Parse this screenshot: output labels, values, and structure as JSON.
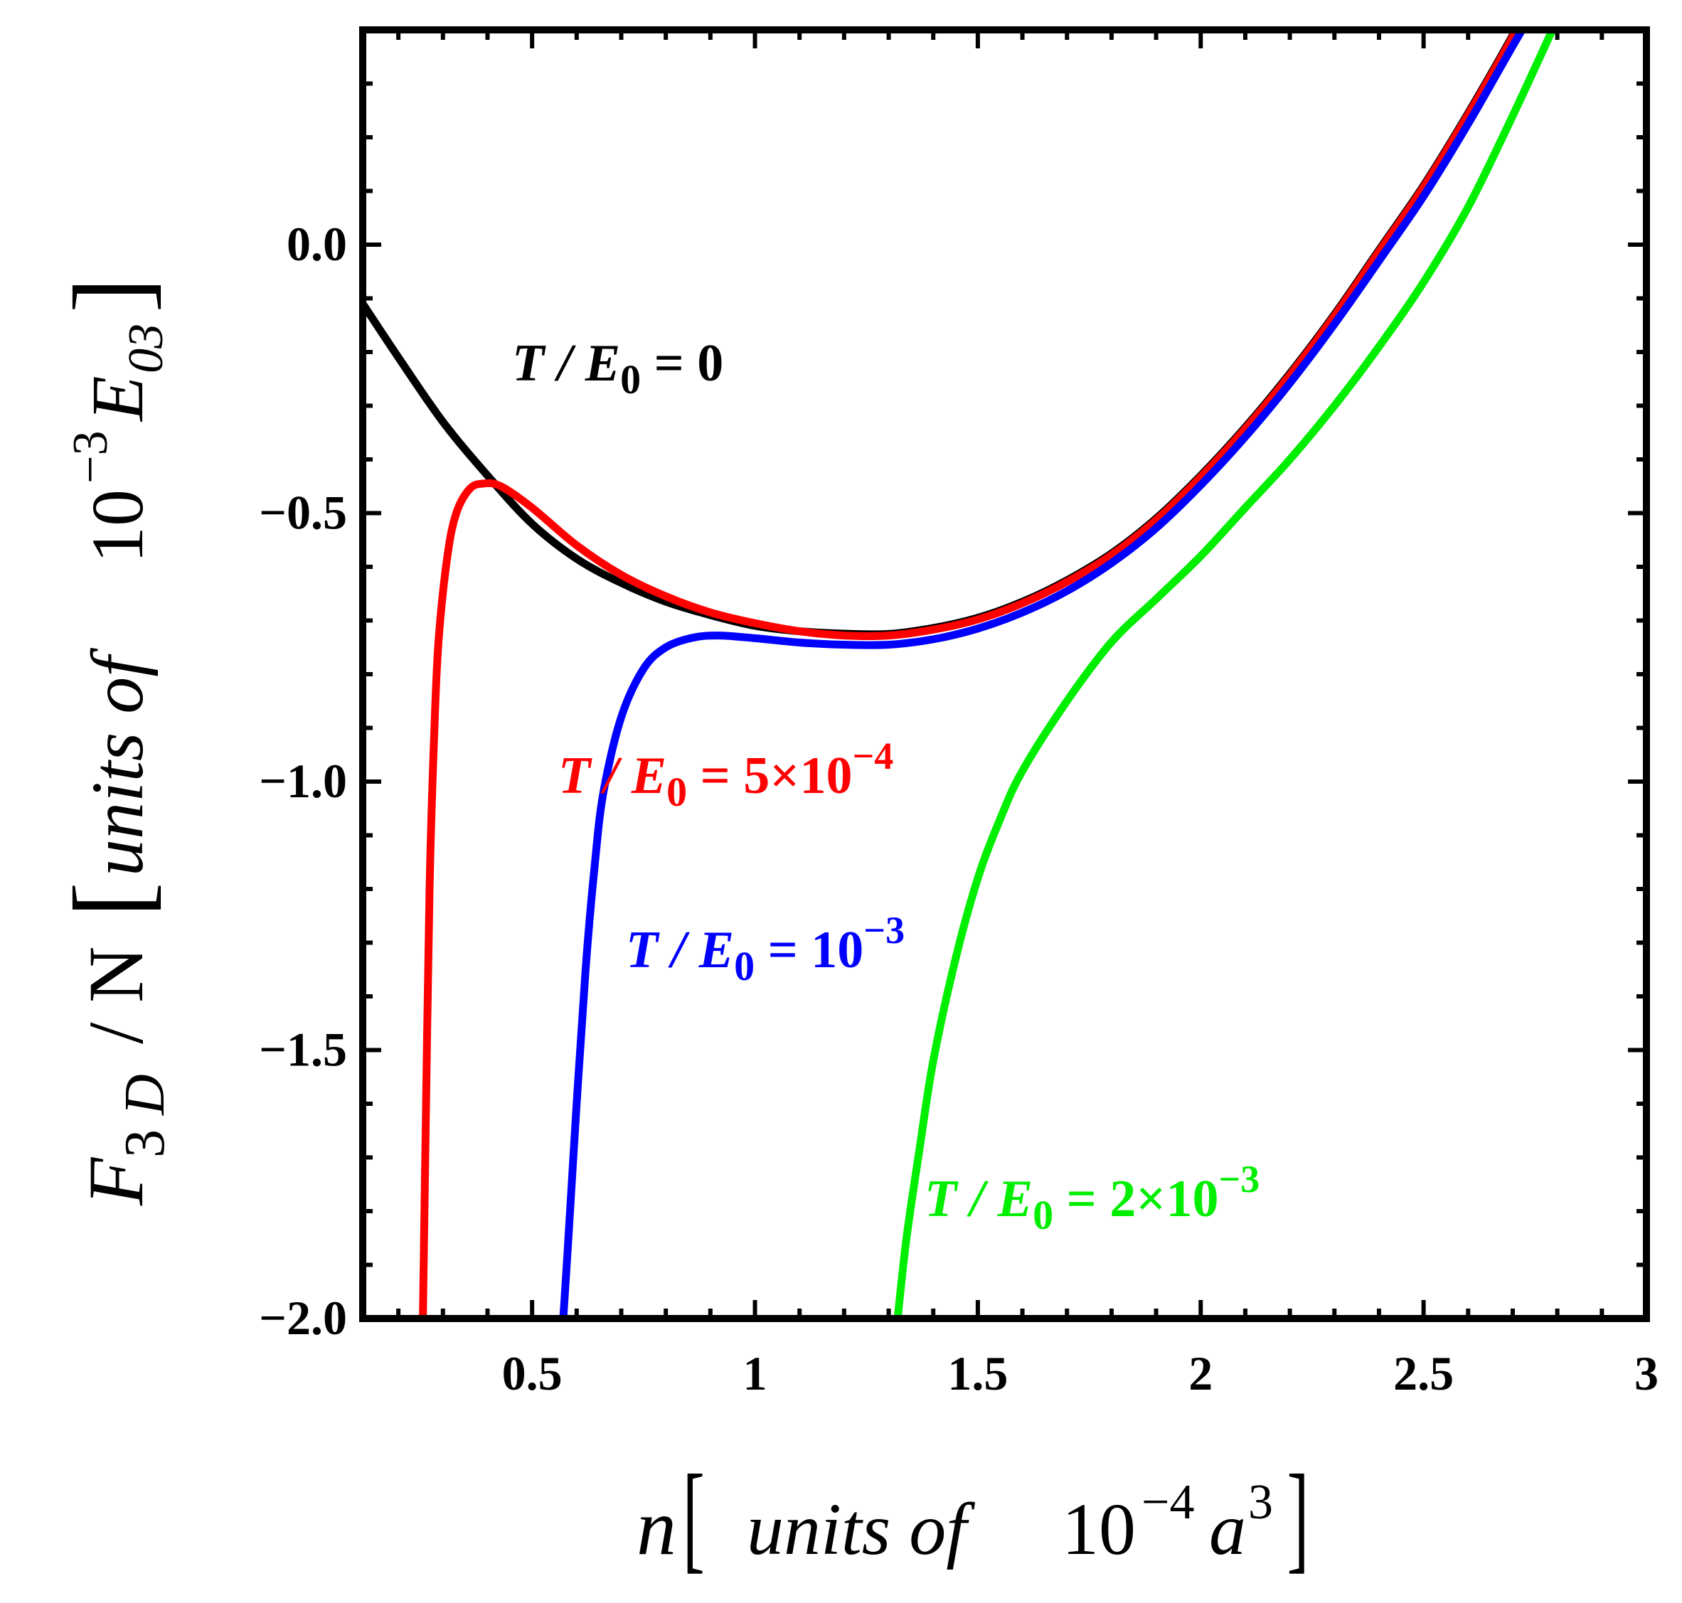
{
  "chart_data": {
    "type": "line",
    "title": "",
    "xlabel": "n [units of 10⁻⁴ a³]",
    "ylabel": "F₃ D / N [units of 10⁻³ E₀₃]",
    "xlim": [
      0.12,
      3.0
    ],
    "ylim": [
      -2.0,
      0.4
    ],
    "x_ticks": [
      "0.5",
      "1",
      "1.5",
      "2",
      "2.5",
      "3"
    ],
    "y_ticks": [
      "0.0",
      "−0.5",
      "−1.0",
      "−1.5",
      "−2.0"
    ],
    "grid": false,
    "series": [
      {
        "name": "T / E0 = 0",
        "color": "#000000",
        "label_parts": [
          "T / E",
          "0",
          " = 0"
        ],
        "points": [
          [
            0.12,
            -0.11
          ],
          [
            0.2,
            -0.21
          ],
          [
            0.3,
            -0.33
          ],
          [
            0.4,
            -0.43
          ],
          [
            0.5,
            -0.52
          ],
          [
            0.6,
            -0.585
          ],
          [
            0.7,
            -0.63
          ],
          [
            0.8,
            -0.665
          ],
          [
            0.9,
            -0.69
          ],
          [
            1.0,
            -0.71
          ],
          [
            1.1,
            -0.72
          ],
          [
            1.2,
            -0.7245
          ],
          [
            1.3,
            -0.725
          ],
          [
            1.4,
            -0.714
          ],
          [
            1.5,
            -0.695
          ],
          [
            1.6,
            -0.665
          ],
          [
            1.7,
            -0.625
          ],
          [
            1.8,
            -0.575
          ],
          [
            1.9,
            -0.51
          ],
          [
            2.0,
            -0.43
          ],
          [
            2.1,
            -0.34
          ],
          [
            2.2,
            -0.24
          ],
          [
            2.3,
            -0.13
          ],
          [
            2.4,
            -0.01
          ],
          [
            2.5,
            0.11
          ],
          [
            2.6,
            0.245
          ],
          [
            2.7,
            0.39
          ],
          [
            2.75,
            0.47
          ]
        ]
      },
      {
        "name": "T / E0 = 5×10^-4",
        "color": "#ff0000",
        "label_parts": [
          "T / E",
          "0",
          " = 5×10",
          "−4"
        ],
        "points": [
          [
            0.255,
            -2.0
          ],
          [
            0.26,
            -1.72
          ],
          [
            0.27,
            -1.2
          ],
          [
            0.28,
            -0.92
          ],
          [
            0.29,
            -0.74
          ],
          [
            0.31,
            -0.58
          ],
          [
            0.33,
            -0.5
          ],
          [
            0.36,
            -0.455
          ],
          [
            0.39,
            -0.445
          ],
          [
            0.43,
            -0.45
          ],
          [
            0.5,
            -0.49
          ],
          [
            0.6,
            -0.56
          ],
          [
            0.7,
            -0.615
          ],
          [
            0.8,
            -0.655
          ],
          [
            0.9,
            -0.685
          ],
          [
            1.0,
            -0.705
          ],
          [
            1.1,
            -0.72
          ],
          [
            1.2,
            -0.728
          ],
          [
            1.3,
            -0.728
          ],
          [
            1.4,
            -0.717
          ],
          [
            1.5,
            -0.698
          ],
          [
            1.6,
            -0.668
          ],
          [
            1.7,
            -0.628
          ],
          [
            1.8,
            -0.578
          ],
          [
            1.9,
            -0.513
          ],
          [
            2.0,
            -0.433
          ],
          [
            2.1,
            -0.343
          ],
          [
            2.2,
            -0.243
          ],
          [
            2.3,
            -0.133
          ],
          [
            2.4,
            -0.013
          ],
          [
            2.5,
            0.107
          ],
          [
            2.6,
            0.242
          ],
          [
            2.7,
            0.387
          ],
          [
            2.75,
            0.47
          ]
        ]
      },
      {
        "name": "T / E0 = 10^-3",
        "color": "#0000ff",
        "label_parts": [
          "T / E",
          "0",
          " = 10",
          "−3"
        ],
        "points": [
          [
            0.57,
            -2.0
          ],
          [
            0.58,
            -1.87
          ],
          [
            0.6,
            -1.6
          ],
          [
            0.62,
            -1.35
          ],
          [
            0.64,
            -1.16
          ],
          [
            0.66,
            -1.02
          ],
          [
            0.7,
            -0.88
          ],
          [
            0.75,
            -0.79
          ],
          [
            0.8,
            -0.75
          ],
          [
            0.86,
            -0.732
          ],
          [
            0.92,
            -0.728
          ],
          [
            1.0,
            -0.733
          ],
          [
            1.1,
            -0.741
          ],
          [
            1.2,
            -0.745
          ],
          [
            1.3,
            -0.745
          ],
          [
            1.4,
            -0.735
          ],
          [
            1.5,
            -0.715
          ],
          [
            1.6,
            -0.685
          ],
          [
            1.7,
            -0.645
          ],
          [
            1.8,
            -0.593
          ],
          [
            1.9,
            -0.528
          ],
          [
            2.0,
            -0.448
          ],
          [
            2.1,
            -0.358
          ],
          [
            2.2,
            -0.258
          ],
          [
            2.3,
            -0.148
          ],
          [
            2.4,
            -0.03
          ],
          [
            2.5,
            0.09
          ],
          [
            2.6,
            0.225
          ],
          [
            2.7,
            0.37
          ],
          [
            2.77,
            0.47
          ]
        ]
      },
      {
        "name": "T / E0 = 2×10^-3",
        "color": "#00ee00",
        "label_parts": [
          "T / E",
          "0",
          " = 2×10",
          "−3"
        ],
        "points": [
          [
            1.32,
            -2.0
          ],
          [
            1.34,
            -1.85
          ],
          [
            1.37,
            -1.68
          ],
          [
            1.4,
            -1.52
          ],
          [
            1.45,
            -1.33
          ],
          [
            1.5,
            -1.18
          ],
          [
            1.55,
            -1.07
          ],
          [
            1.6,
            -0.98
          ],
          [
            1.7,
            -0.85
          ],
          [
            1.8,
            -0.74
          ],
          [
            1.9,
            -0.66
          ],
          [
            2.0,
            -0.58
          ],
          [
            2.1,
            -0.49
          ],
          [
            2.2,
            -0.4
          ],
          [
            2.3,
            -0.3
          ],
          [
            2.4,
            -0.19
          ],
          [
            2.5,
            -0.07
          ],
          [
            2.6,
            0.07
          ],
          [
            2.7,
            0.24
          ],
          [
            2.8,
            0.42
          ]
        ]
      }
    ]
  }
}
